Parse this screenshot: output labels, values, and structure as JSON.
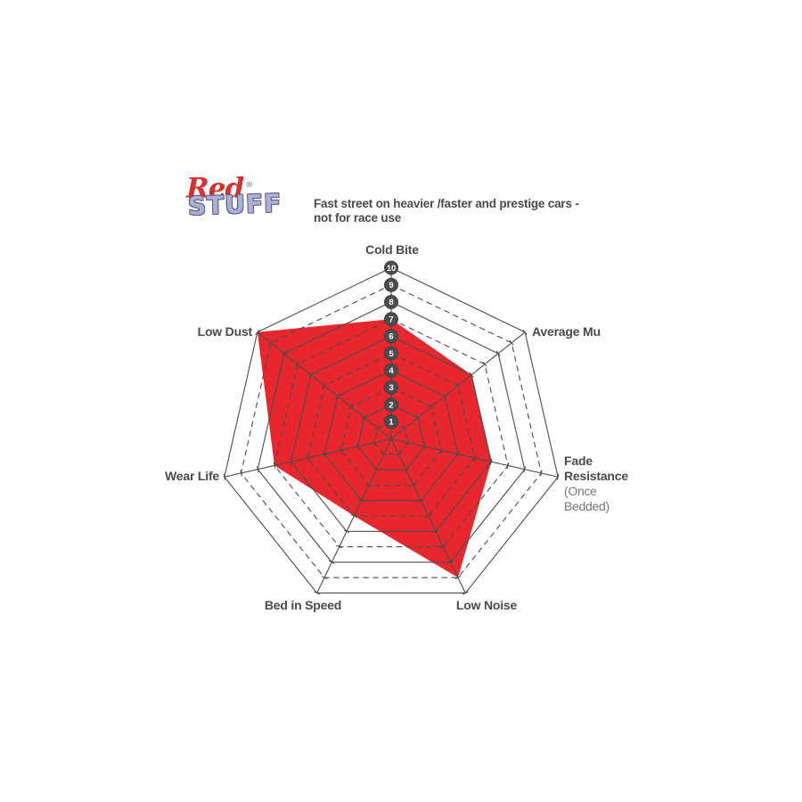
{
  "logo": {
    "word1": "Red",
    "registered": "®",
    "word2": "STUFF"
  },
  "header": {
    "tagline_line1": "Fast street on heavier /faster and prestige cars -",
    "tagline_line2": "not for race use"
  },
  "chart_data": {
    "type": "radar",
    "title": "RedStuff brake pad performance radar",
    "axes": [
      {
        "label": "Cold Bite",
        "value": 7
      },
      {
        "label": "Average Mu",
        "value": 6
      },
      {
        "label": "Fade Resistance",
        "sublabel": "(Once Bedded)",
        "value": 6
      },
      {
        "label": "Low Noise",
        "value": 9
      },
      {
        "label": "Bed in Speed",
        "value": 5
      },
      {
        "label": "Wear Life",
        "value": 7
      },
      {
        "label": "Low Dust",
        "value": 10
      }
    ],
    "scale": {
      "min": 0,
      "max": 10,
      "badge_values": [
        1,
        2,
        3,
        4,
        5,
        6,
        7,
        8,
        9,
        10
      ],
      "badge_axis": "Cold Bite"
    },
    "grid": {
      "shape": "heptagon",
      "rings": 10,
      "dashed_rings": [
        1,
        3,
        5,
        7,
        9
      ],
      "solid_rings": [
        2,
        4,
        6,
        8,
        10
      ],
      "legend_position": "none"
    },
    "colors": {
      "fill": "#e7272d",
      "grid": "#4a4b4d",
      "badge": "#4b4c4e",
      "badge_stroke": "#3c3d3f",
      "badge_text": "#ffffff",
      "label": "#4a4a4c",
      "sublabel": "#77787b"
    }
  }
}
